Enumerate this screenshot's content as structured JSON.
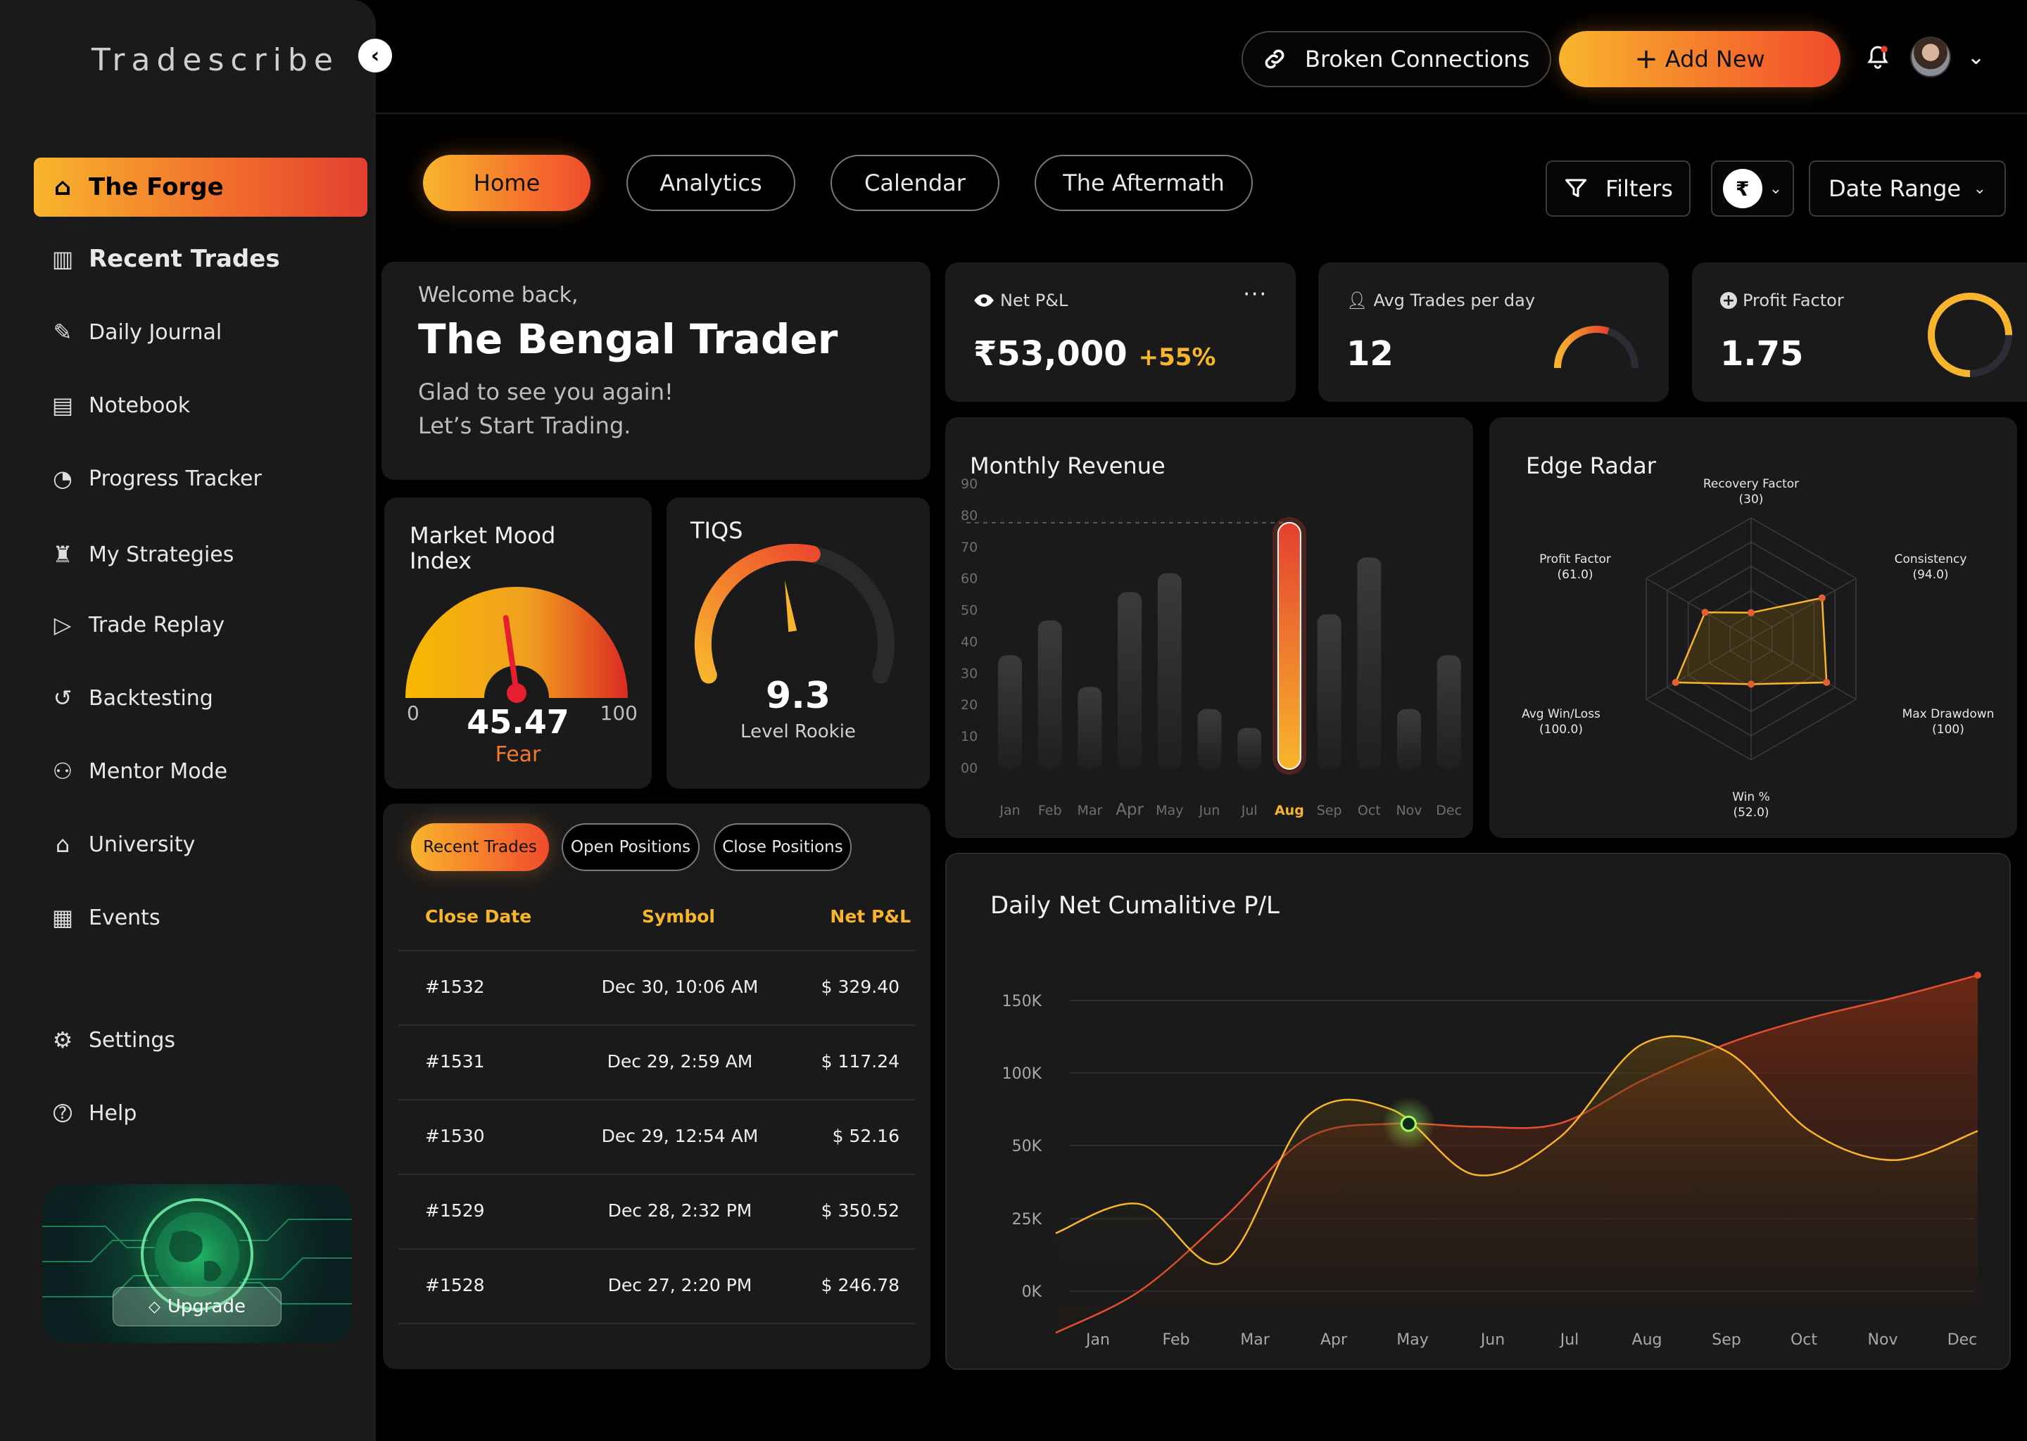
{
  "app": {
    "brand": "Tradescribe"
  },
  "sidebar": {
    "items": [
      {
        "label": "The Forge",
        "icon": "home-icon"
      },
      {
        "label": "Recent Trades",
        "icon": "bar-chart-icon"
      },
      {
        "label": "Daily Journal",
        "icon": "journal-icon"
      },
      {
        "label": "Notebook",
        "icon": "notebook-icon"
      },
      {
        "label": "Progress Tracker",
        "icon": "clock-icon"
      },
      {
        "label": "My Strategies",
        "icon": "strategy-icon"
      },
      {
        "label": "Trade Replay",
        "icon": "play-icon"
      },
      {
        "label": "Backtesting",
        "icon": "rewind-icon"
      },
      {
        "label": "Mentor Mode",
        "icon": "mentor-icon"
      },
      {
        "label": "University",
        "icon": "graduation-cap-icon"
      },
      {
        "label": "Events",
        "icon": "events-icon"
      }
    ],
    "bottom": [
      {
        "label": "Settings",
        "icon": "gear-icon"
      },
      {
        "label": "Help",
        "icon": "help-icon"
      }
    ],
    "upgrade_label": "Upgrade"
  },
  "topbar": {
    "broken_connections": "Broken Connections",
    "add_new": "Add New"
  },
  "tabs": [
    "Home",
    "Analytics",
    "Calendar",
    "The Aftermath"
  ],
  "controls": {
    "filters": "Filters",
    "currency_symbol": "₹",
    "date_range": "Date Range"
  },
  "welcome": {
    "greeting": "Welcome back,",
    "name": "The Bengal Trader",
    "line1": "Glad to see you again!",
    "line2": "Let’s Start Trading."
  },
  "kpis": {
    "net_pl": {
      "label": "Net P&L",
      "value": "₹53,000",
      "change": "+55%"
    },
    "avg_trades": {
      "label": "Avg Trades per day",
      "value": "12",
      "gauge_level": 0.6
    },
    "profit_factor": {
      "label": "Profit Factor",
      "value": "1.75",
      "ring_level": 0.75
    }
  },
  "mood": {
    "title_line1": "Market Mood",
    "title_line2": "Index",
    "min": "0",
    "max": "100",
    "value": "45.47",
    "value_num": 45.47,
    "status": "Fear"
  },
  "tiqs": {
    "title": "TIQS",
    "value": "9.3",
    "value_num": 9.3,
    "max": 10,
    "level": "Level Rookie"
  },
  "trades": {
    "tabs": [
      "Recent Trades",
      "Open Positions",
      "Close Positions"
    ],
    "headers": [
      "Close Date",
      "Symbol",
      "Net P&L"
    ],
    "rows": [
      {
        "id": "#1532",
        "date": "Dec 30, 10:06 AM",
        "pnl": "$ 329.40"
      },
      {
        "id": "#1531",
        "date": "Dec 29, 2:59 AM",
        "pnl": "$ 117.24"
      },
      {
        "id": "#1530",
        "date": "Dec 29, 12:54 AM",
        "pnl": "$ 52.16"
      },
      {
        "id": "#1529",
        "date": "Dec 28, 2:32 PM",
        "pnl": "$ 350.52"
      },
      {
        "id": "#1528",
        "date": "Dec 27, 2:20 PM",
        "pnl": "$ 246.78"
      }
    ]
  },
  "colors": {
    "accent": "#f8b52c",
    "accent_red": "#e4402f",
    "card": "#1a1a1a"
  },
  "chart_data": [
    {
      "id": "monthly-revenue",
      "type": "bar",
      "title": "Monthly Revenue",
      "categories": [
        "Jan",
        "Feb",
        "Mar",
        "Apr",
        "May",
        "Jun",
        "Jul",
        "Aug",
        "Sep",
        "Oct",
        "Nov",
        "Dec"
      ],
      "values": [
        36,
        47,
        26,
        56,
        62,
        19,
        13,
        78,
        49,
        67,
        19,
        36
      ],
      "highlight": "Aug",
      "y_ticks": [
        "00",
        "10",
        "20",
        "30",
        "40",
        "50",
        "60",
        "70",
        "80",
        "90"
      ],
      "ylim": [
        0,
        90
      ],
      "reference_line": 78,
      "grid": false
    },
    {
      "id": "edge-radar",
      "type": "radar",
      "title": "Edge Radar",
      "axes": [
        {
          "label": "Recovery Factor",
          "value_label": "(30)",
          "value": 30
        },
        {
          "label": "Consistency",
          "value_label": "(94.0)",
          "value": 94.0
        },
        {
          "label": "Max Drawdown",
          "value_label": "(100)",
          "value": 100
        },
        {
          "label": "Win %",
          "value_label": "(52.0)",
          "value": 52.0
        },
        {
          "label": "Avg Win/Loss",
          "value_label": "(100.0)",
          "value": 100.0
        },
        {
          "label": "Profit Factor",
          "value_label": "(61.0)",
          "value": 61.0
        }
      ]
    },
    {
      "id": "daily-net-cumulative",
      "type": "line",
      "title": "Daily Net Cumalitive P/L",
      "x": [
        "Jan",
        "Feb",
        "Mar",
        "Apr",
        "May",
        "Jun",
        "Jul",
        "Aug",
        "Sep",
        "Oct",
        "Nov",
        "Dec"
      ],
      "y_ticks": [
        "0K",
        "25K",
        "50K",
        "100K",
        "150K"
      ],
      "series": [
        {
          "values": [
            -15000,
            0,
            25000,
            55000,
            65000,
            63000,
            65000,
            95000,
            120000,
            138000,
            152000,
            168000
          ]
        },
        {
          "values": [
            20000,
            30000,
            10000,
            70000,
            75000,
            40000,
            55000,
            120000,
            115000,
            60000,
            45000,
            60000
          ]
        }
      ],
      "highlight_point": {
        "x": "May",
        "y": 65000
      },
      "ylim": [
        -20000,
        170000
      ]
    }
  ]
}
